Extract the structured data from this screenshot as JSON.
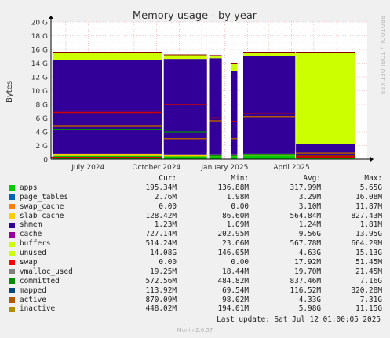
{
  "chart_data": {
    "type": "area",
    "title": "Memory usage - by year",
    "ylabel": "Bytes",
    "xlabel": "",
    "ylim": [
      0,
      20
    ],
    "y_unit": "G",
    "y_ticks": [
      "0",
      "2 G",
      "4 G",
      "6 G",
      "8 G",
      "10 G",
      "12 G",
      "14 G",
      "16 G",
      "18 G",
      "20 G"
    ],
    "x_range": [
      "2024-05-12",
      "2025-07-12"
    ],
    "x_ticks": [
      {
        "label": "July 2024",
        "date": "2024-07-01"
      },
      {
        "label": "October 2024",
        "date": "2024-10-01"
      },
      {
        "label": "January 2025",
        "date": "2025-01-01"
      },
      {
        "label": "April 2025",
        "date": "2025-04-01"
      }
    ],
    "grid": true,
    "segments": [
      {
        "start": "2024-05-14",
        "end": "2024-10-08",
        "unused_top": 15.6,
        "apps": 0.5,
        "slab": 0.7,
        "cache_top": 14.4,
        "committed": 4.3,
        "active": 4.8,
        "inactive": 6.8
      },
      {
        "start": "2024-10-11",
        "end": "2024-12-08",
        "unused_top": 15.2,
        "apps": 0.4,
        "slab": 0.6,
        "cache_top": 14.6,
        "committed": 4.0,
        "active": 3.0,
        "inactive": 8.0
      },
      {
        "start": "2024-12-11",
        "end": "2024-12-28",
        "unused_top": 15.1,
        "apps": 0.4,
        "slab": 0.6,
        "cache_top": 14.7,
        "committed": 0.5,
        "active": 5.6,
        "inactive": 6.0
      },
      {
        "start": "2025-01-10",
        "end": "2025-01-18",
        "unused_top": 14.0,
        "apps": 0.4,
        "slab": 0.6,
        "cache_top": 12.8,
        "committed": 0.5,
        "active": 3.0,
        "inactive": 5.5
      },
      {
        "start": "2025-01-26",
        "end": "2025-04-06",
        "unused_top": 15.6,
        "apps": 0.5,
        "slab": 0.7,
        "cache_top": 15.0,
        "committed": 0.6,
        "active": 6.2,
        "inactive": 6.6
      },
      {
        "start": "2025-04-07",
        "end": "2025-06-26",
        "unused_top": 15.6,
        "apps": 0.3,
        "slab": 0.5,
        "cache_top": 2.2,
        "committed": 0.5,
        "active": 0.9,
        "inactive": 0.45
      }
    ],
    "series": [
      {
        "name": "apps",
        "color": "#00cc00",
        "cur": "195.34M",
        "min": "136.88M",
        "avg": "317.99M",
        "max": "5.65G"
      },
      {
        "name": "page_tables",
        "color": "#0066b3",
        "cur": "2.76M",
        "min": "1.98M",
        "avg": "3.29M",
        "max": "16.08M"
      },
      {
        "name": "swap_cache",
        "color": "#ff8000",
        "cur": "0.00",
        "min": "0.00",
        "avg": "3.10M",
        "max": "11.87M"
      },
      {
        "name": "slab_cache",
        "color": "#ffcc00",
        "cur": "128.42M",
        "min": "86.60M",
        "avg": "564.84M",
        "max": "827.43M"
      },
      {
        "name": "shmem",
        "color": "#330099",
        "cur": "1.23M",
        "min": "1.09M",
        "avg": "1.24M",
        "max": "1.81M"
      },
      {
        "name": "cache",
        "color": "#990099",
        "cur": "727.14M",
        "min": "202.95M",
        "avg": "9.56G",
        "max": "13.95G"
      },
      {
        "name": "buffers",
        "color": "#ccff00",
        "cur": "514.24M",
        "min": "23.66M",
        "avg": "567.78M",
        "max": "664.29M"
      },
      {
        "name": "unused",
        "color": "#ccff00",
        "cur": "14.08G",
        "min": "146.05M",
        "avg": "4.63G",
        "max": "15.13G"
      },
      {
        "name": "swap",
        "color": "#ff0000",
        "cur": "0.00",
        "min": "0.00",
        "avg": "17.92M",
        "max": "51.45M"
      },
      {
        "name": "vmalloc_used",
        "color": "#808080",
        "cur": "19.25M",
        "min": "18.44M",
        "avg": "19.70M",
        "max": "21.45M"
      },
      {
        "name": "committed",
        "color": "#008f00",
        "cur": "572.56M",
        "min": "484.82M",
        "avg": "837.46M",
        "max": "7.16G"
      },
      {
        "name": "mapped",
        "color": "#00487d",
        "cur": "113.92M",
        "min": "69.54M",
        "avg": "116.52M",
        "max": "320.28M"
      },
      {
        "name": "active",
        "color": "#b35a00",
        "cur": "870.09M",
        "min": "98.02M",
        "avg": "4.33G",
        "max": "7.31G"
      },
      {
        "name": "inactive",
        "color": "#b38f00",
        "cur": "448.02M",
        "min": "194.01M",
        "avg": "5.98G",
        "max": "11.15G"
      }
    ]
  },
  "legend": {
    "headers": {
      "cur": "Cur:",
      "min": "Min:",
      "avg": "Avg:",
      "max": "Max:"
    }
  },
  "footer": {
    "last_update": "Last update: Sat Jul 12 01:00:05 2025",
    "generator": "Munin 2.0.57"
  },
  "watermark": "RRDTOOL / TOBI OETIKER",
  "colors": {
    "background": "#f0f0f0",
    "plot_background": "#ffffff",
    "grid": "#e0b0b0",
    "axis": "#000000",
    "swap_marker": "#ff0000",
    "inactive_line": "#990000"
  }
}
